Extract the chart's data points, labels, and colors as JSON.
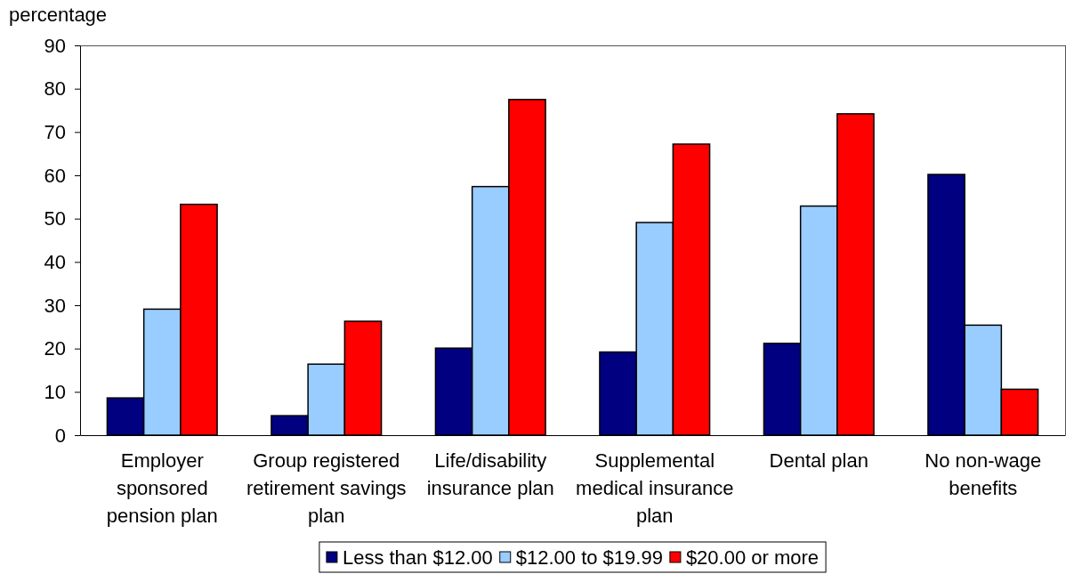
{
  "chart_data": {
    "type": "bar",
    "ylabel": "percentage",
    "categories": [
      "Employer sponsored pension plan",
      "Group registered retirement savings plan",
      "Life/disability insurance plan",
      "Supplemental medical insurance plan",
      "Dental plan",
      "No non-wage benefits"
    ],
    "series": [
      {
        "name": "Less than $12.00",
        "color": "#000080",
        "values": [
          8.6,
          4.5,
          20.1,
          19.2,
          21.2,
          60.2
        ]
      },
      {
        "name": "$12.00 to $19.99",
        "color": "#99ccff",
        "values": [
          29.1,
          16.4,
          57.4,
          49.1,
          52.9,
          25.4
        ]
      },
      {
        "name": "$20.00 or more",
        "color": "#ff0000",
        "values": [
          53.3,
          26.3,
          77.5,
          67.2,
          74.2,
          10.6
        ]
      }
    ],
    "ylim": [
      0,
      90
    ],
    "yticks": [
      0,
      10,
      20,
      30,
      40,
      50,
      60,
      70,
      80,
      90
    ],
    "legend": "bottom"
  }
}
